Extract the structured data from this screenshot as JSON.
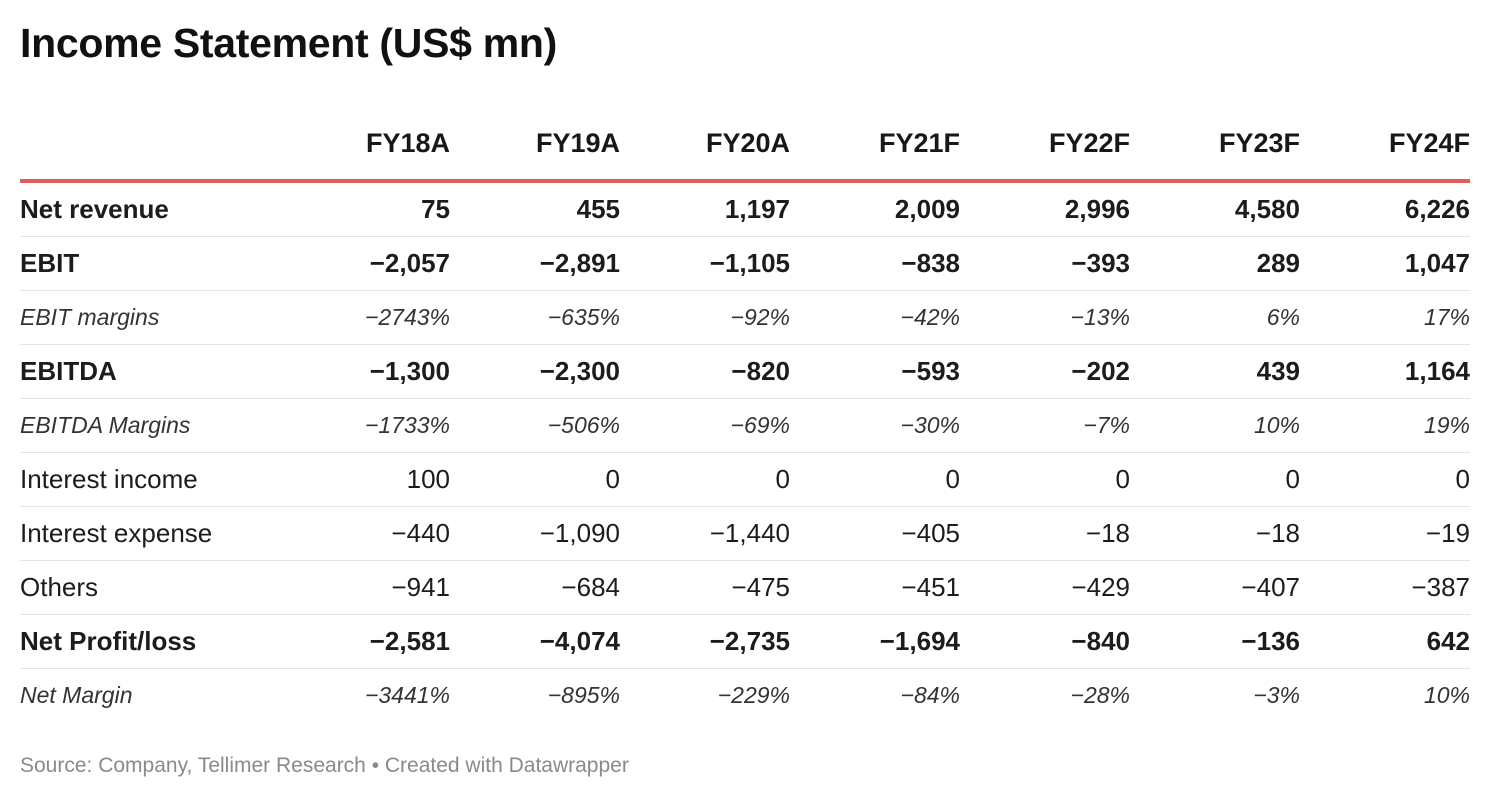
{
  "chart_data": {
    "type": "table",
    "title": "Income Statement (US$ mn)",
    "columns": [
      "FY18A",
      "FY19A",
      "FY20A",
      "FY21F",
      "FY22F",
      "FY23F",
      "FY24F"
    ],
    "rows": [
      {
        "label": "Net revenue",
        "style": "bold",
        "values": [
          "75",
          "455",
          "1,197",
          "2,009",
          "2,996",
          "4,580",
          "6,226"
        ]
      },
      {
        "label": "EBIT",
        "style": "bold",
        "values": [
          "−2,057",
          "−2,891",
          "−1,105",
          "−838",
          "−393",
          "289",
          "1,047"
        ]
      },
      {
        "label": "EBIT margins",
        "style": "italic",
        "values": [
          "−2743%",
          "−635%",
          "−92%",
          "−42%",
          "−13%",
          "6%",
          "17%"
        ]
      },
      {
        "label": "EBITDA",
        "style": "bold",
        "values": [
          "−1,300",
          "−2,300",
          "−820",
          "−593",
          "−202",
          "439",
          "1,164"
        ]
      },
      {
        "label": "EBITDA Margins",
        "style": "italic",
        "values": [
          "−1733%",
          "−506%",
          "−69%",
          "−30%",
          "−7%",
          "10%",
          "19%"
        ]
      },
      {
        "label": "Interest income",
        "style": "normal",
        "values": [
          "100",
          "0",
          "0",
          "0",
          "0",
          "0",
          "0"
        ]
      },
      {
        "label": "Interest expense",
        "style": "normal",
        "values": [
          "−440",
          "−1,090",
          "−1,440",
          "−405",
          "−18",
          "−18",
          "−19"
        ]
      },
      {
        "label": "Others",
        "style": "normal",
        "values": [
          "−941",
          "−684",
          "−475",
          "−451",
          "−429",
          "−407",
          "−387"
        ]
      },
      {
        "label": "Net Profit/loss",
        "style": "bold",
        "values": [
          "−2,581",
          "−4,074",
          "−2,735",
          "−1,694",
          "−840",
          "−136",
          "642"
        ]
      },
      {
        "label": "Net Margin",
        "style": "italic",
        "values": [
          "−3441%",
          "−895%",
          "−229%",
          "−84%",
          "−28%",
          "−3%",
          "10%"
        ]
      }
    ],
    "header_rule_color": "#e35d5d"
  },
  "footer": {
    "source": "Source: Company, Tellimer Research • Created with Datawrapper"
  }
}
